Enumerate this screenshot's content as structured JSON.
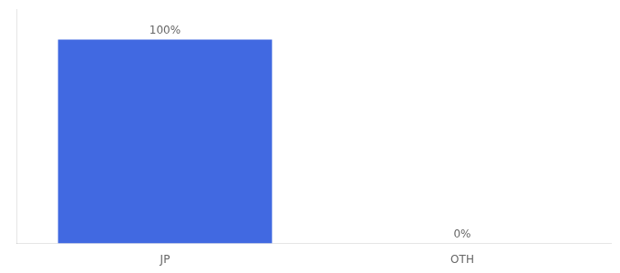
{
  "chart_data": {
    "type": "bar",
    "categories": [
      "JP",
      "OTH"
    ],
    "values": [
      100,
      0
    ],
    "value_labels": [
      "100%",
      "0%"
    ],
    "data_labels": true,
    "color": "#4169e1",
    "ylim": [
      0,
      115
    ],
    "grid": false,
    "tick_labels": "x"
  }
}
